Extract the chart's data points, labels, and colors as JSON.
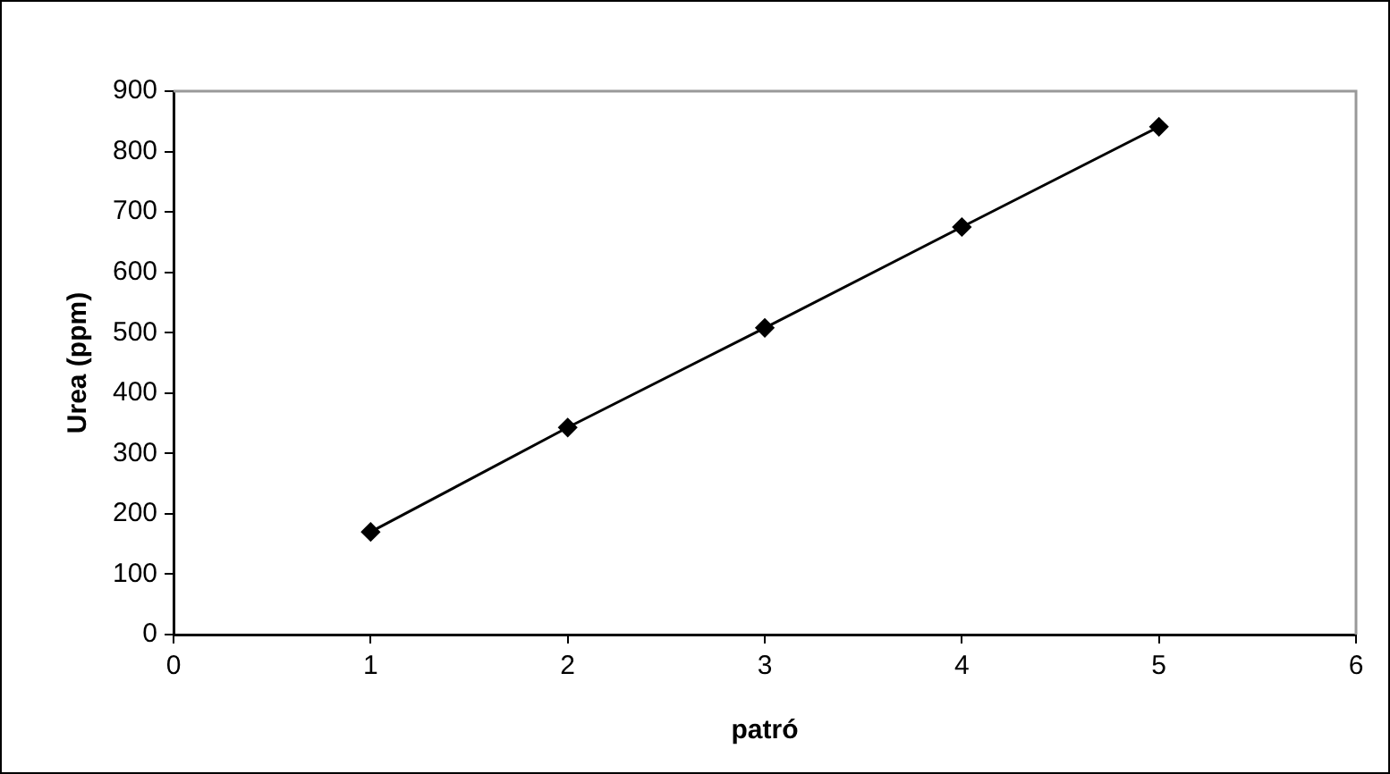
{
  "chart_data": {
    "type": "line",
    "xlabel": "patró",
    "ylabel": "Urea (ppm)",
    "x": [
      1,
      2,
      3,
      4,
      5
    ],
    "series": [
      {
        "color": "#000000",
        "values": [
          170,
          343,
          508,
          675,
          841
        ]
      }
    ],
    "xlim": [
      0,
      6
    ],
    "xticks": [
      0,
      1,
      2,
      3,
      4,
      5,
      6
    ],
    "ylim": [
      0,
      900
    ],
    "yticks": [
      0,
      100,
      200,
      300,
      400,
      500,
      600,
      700,
      800,
      900
    ],
    "grid": false,
    "legend": false,
    "marker": "diamond",
    "line_style": "solid"
  }
}
